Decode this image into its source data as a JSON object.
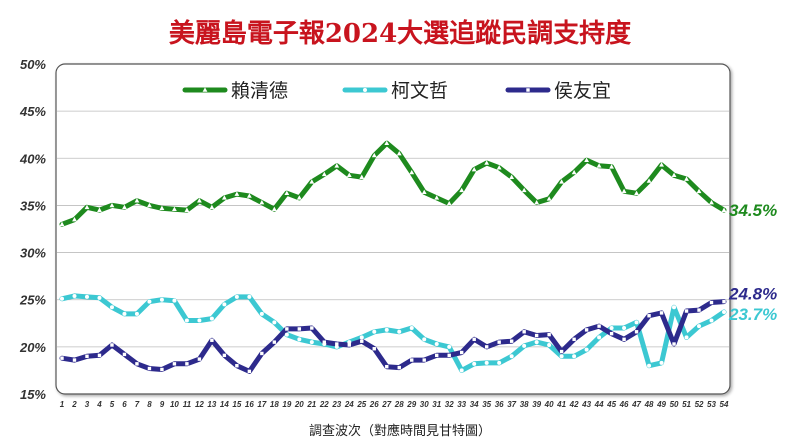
{
  "chart_data": {
    "type": "line",
    "title": "美麗島電子報2024大選追蹤民調支持度",
    "xlabel": "調查波次（對應時間見甘特圖）",
    "ylabel": "",
    "ylim": [
      15,
      50
    ],
    "yticks": [
      "15%",
      "20%",
      "25%",
      "30%",
      "35%",
      "40%",
      "45%",
      "50%"
    ],
    "x": [
      1,
      2,
      3,
      4,
      5,
      6,
      7,
      8,
      9,
      10,
      11,
      12,
      13,
      14,
      15,
      16,
      17,
      18,
      19,
      20,
      21,
      22,
      23,
      24,
      25,
      26,
      27,
      28,
      29,
      30,
      31,
      32,
      33,
      34,
      35,
      36,
      37,
      38,
      39,
      40,
      41,
      42,
      43,
      44,
      45,
      46,
      47,
      48,
      49,
      50,
      51,
      52,
      53,
      54
    ],
    "grid": true,
    "legend_position": "top",
    "series": [
      {
        "name": "賴清德",
        "color": "#1e8a1e",
        "end_label": "34.5%",
        "values": [
          33.0,
          33.5,
          34.8,
          34.5,
          35.0,
          34.8,
          35.5,
          35.0,
          34.7,
          34.6,
          34.5,
          35.5,
          34.8,
          35.8,
          36.2,
          36.0,
          35.3,
          34.6,
          36.3,
          35.8,
          37.5,
          38.3,
          39.2,
          38.2,
          38.0,
          40.3,
          41.6,
          40.5,
          38.5,
          36.4,
          35.8,
          35.2,
          36.6,
          38.8,
          39.5,
          39.0,
          38.0,
          36.6,
          35.3,
          35.7,
          37.5,
          38.5,
          39.8,
          39.2,
          39.1,
          36.5,
          36.3,
          37.6,
          39.3,
          38.2,
          37.8,
          36.5,
          35.3,
          34.5
        ]
      },
      {
        "name": "柯文哲",
        "color": "#3cc8d2",
        "end_label": "23.7%",
        "values": [
          25.1,
          25.4,
          25.3,
          25.2,
          24.2,
          23.5,
          23.5,
          24.8,
          25.0,
          24.9,
          22.8,
          22.8,
          23.0,
          24.5,
          25.3,
          25.3,
          23.5,
          22.6,
          21.3,
          20.8,
          20.5,
          20.3,
          20.0,
          20.5,
          21.0,
          21.6,
          21.8,
          21.6,
          22.0,
          20.8,
          20.3,
          20.0,
          17.5,
          18.2,
          18.3,
          18.3,
          19.0,
          20.1,
          20.5,
          20.2,
          19.0,
          19.0,
          19.7,
          21.0,
          22.0,
          22.0,
          22.6,
          18.0,
          18.3,
          24.2,
          21.0,
          22.2,
          22.8,
          23.7
        ]
      },
      {
        "name": "侯友宜",
        "color": "#2d2a8c",
        "end_label": "24.8%",
        "values": [
          18.8,
          18.6,
          19.0,
          19.1,
          20.2,
          19.2,
          18.2,
          17.7,
          17.6,
          18.2,
          18.2,
          18.7,
          20.7,
          19.1,
          18.0,
          17.4,
          19.3,
          20.5,
          21.9,
          21.9,
          22.0,
          20.5,
          20.3,
          20.2,
          20.6,
          19.8,
          17.9,
          17.8,
          18.6,
          18.6,
          19.1,
          19.1,
          19.4,
          20.8,
          20.0,
          20.5,
          20.6,
          21.6,
          21.2,
          21.3,
          19.5,
          20.8,
          21.8,
          22.2,
          21.4,
          20.8,
          21.6,
          23.3,
          23.6,
          20.3,
          23.8,
          23.9,
          24.7,
          24.8
        ]
      }
    ]
  }
}
